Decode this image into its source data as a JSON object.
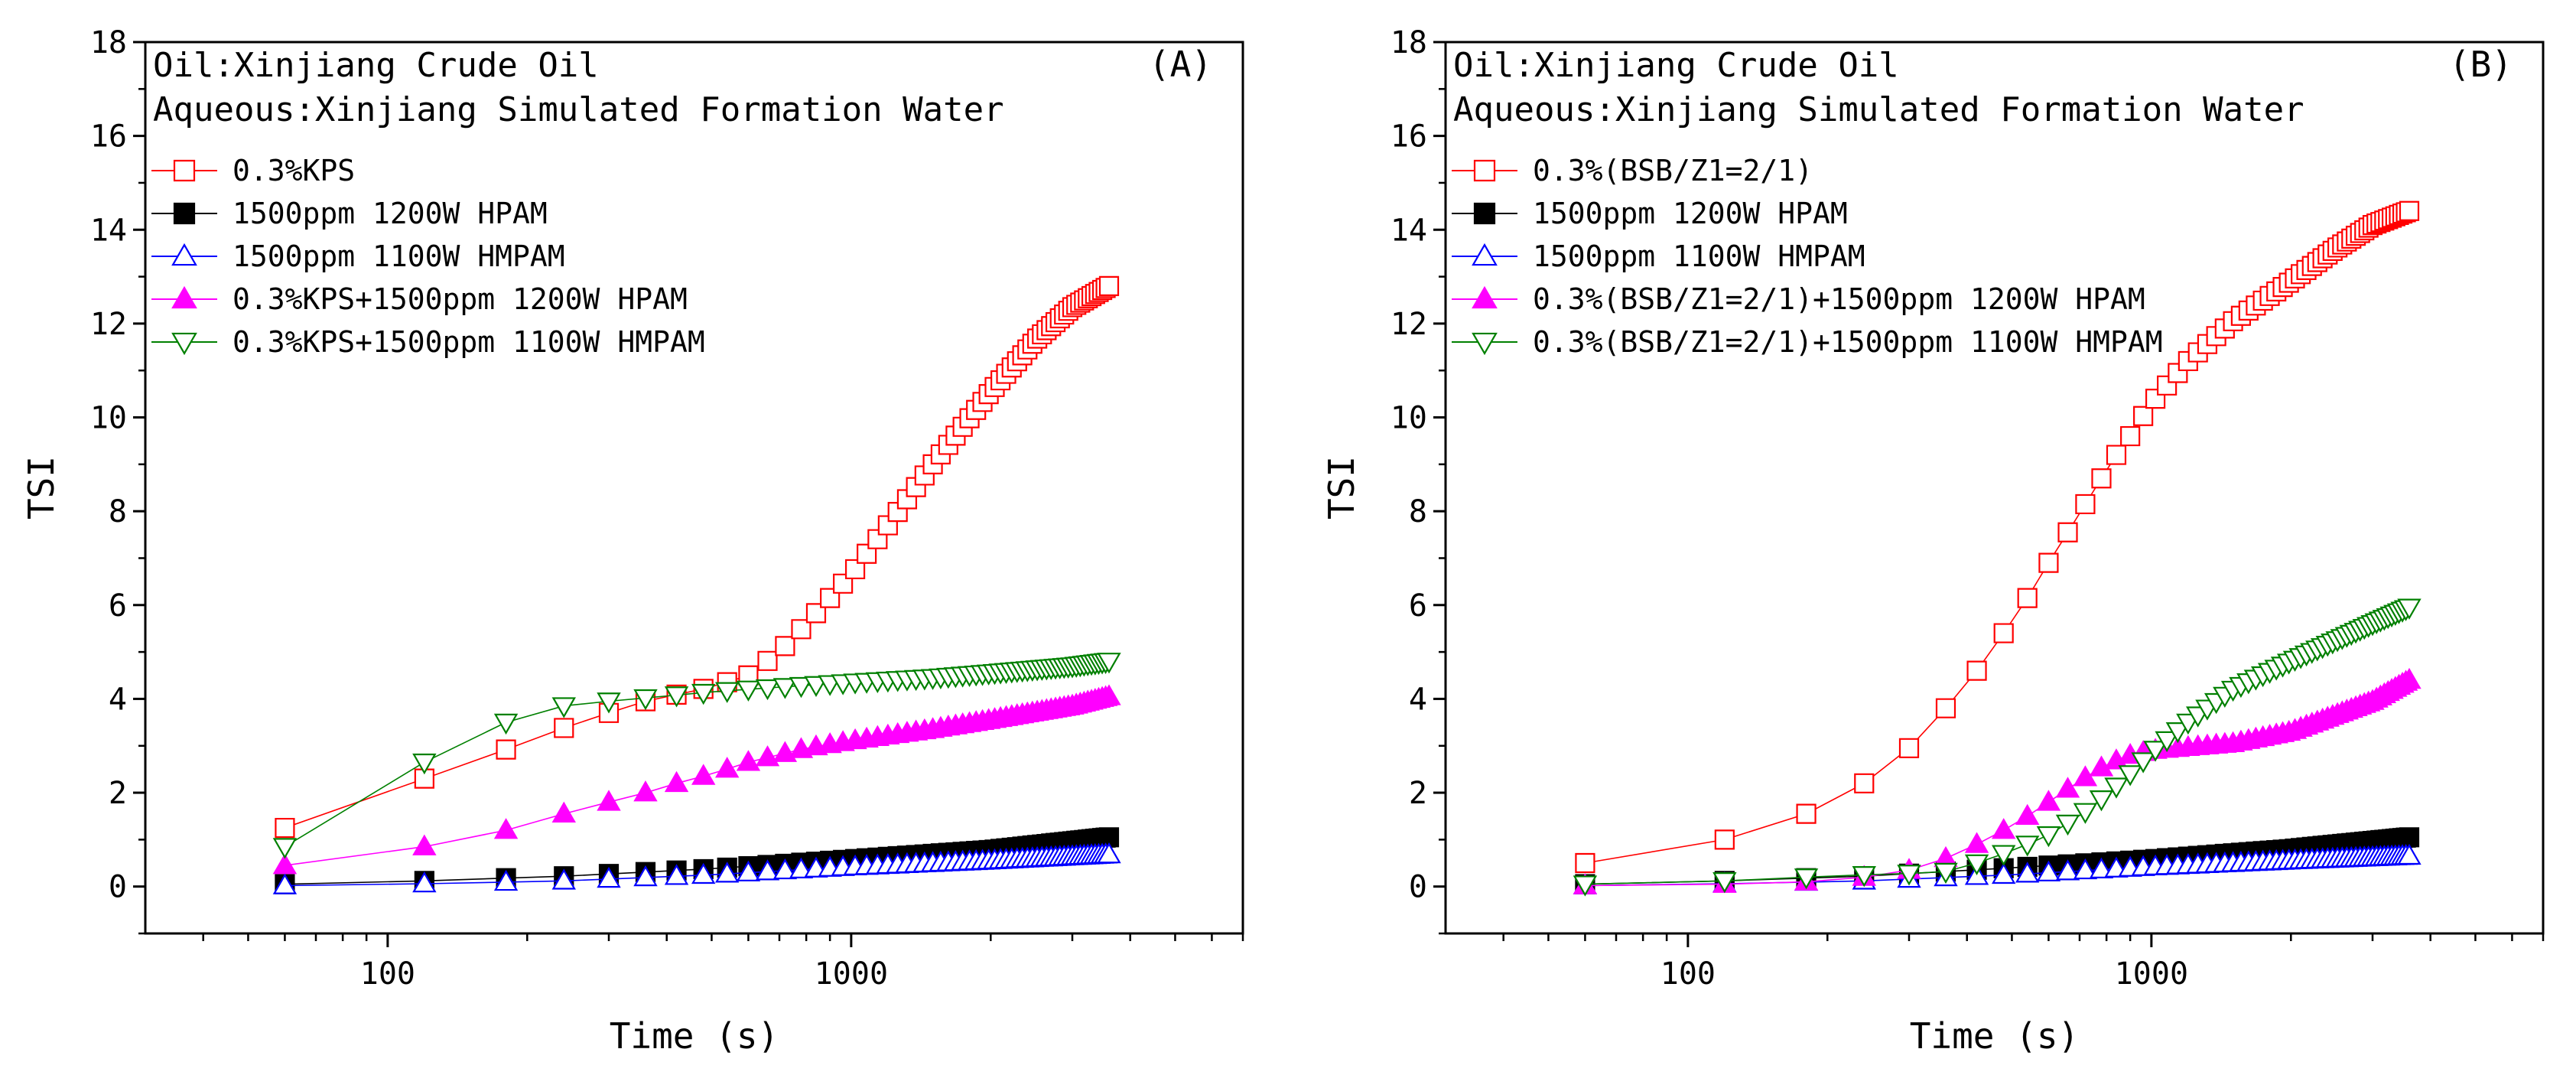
{
  "chart_data": [
    {
      "type": "scatter",
      "panel_label": "(A)",
      "annotation_lines": [
        "Oil:Xinjiang Crude Oil",
        "Aqueous:Xinjiang Simulated Formation Water"
      ],
      "xlabel": "Time (s)",
      "ylabel": "TSI",
      "xscale": "log",
      "xlim": [
        30,
        7000
      ],
      "ylim": [
        -1,
        18
      ],
      "xticks": [
        100,
        1000
      ],
      "xtick_labels": [
        "100",
        "1000"
      ],
      "yticks": [
        0,
        2,
        4,
        6,
        8,
        10,
        12,
        14,
        16,
        18
      ],
      "ytick_labels": [
        "0",
        "2",
        "4",
        "6",
        "8",
        "10",
        "12",
        "14",
        "16",
        "18"
      ],
      "legend_position": "top-left",
      "series": [
        {
          "name": "0.3%KPS",
          "color": "#ff0000",
          "marker": "square-open",
          "control_points": [
            [
              60,
              1.25
            ],
            [
              120,
              2.3
            ],
            [
              180,
              2.92
            ],
            [
              240,
              3.38
            ],
            [
              300,
              3.7
            ],
            [
              360,
              3.95
            ],
            [
              500,
              4.25
            ],
            [
              600,
              4.5
            ],
            [
              700,
              5.0
            ],
            [
              800,
              5.6
            ],
            [
              900,
              6.15
            ],
            [
              1000,
              6.65
            ],
            [
              1200,
              7.7
            ],
            [
              1500,
              9.0
            ],
            [
              2000,
              10.55
            ],
            [
              2500,
              11.65
            ],
            [
              3000,
              12.35
            ],
            [
              3600,
              12.8
            ]
          ]
        },
        {
          "name": "1500ppm 1200W HPAM",
          "color": "#000000",
          "marker": "square-filled",
          "control_points": [
            [
              60,
              0.05
            ],
            [
              120,
              0.12
            ],
            [
              240,
              0.22
            ],
            [
              500,
              0.38
            ],
            [
              1000,
              0.58
            ],
            [
              2000,
              0.78
            ],
            [
              3600,
              1.05
            ]
          ]
        },
        {
          "name": "1500ppm 1100W HMPAM",
          "color": "#0000ff",
          "marker": "triangle-up-open",
          "control_points": [
            [
              60,
              0.02
            ],
            [
              120,
              0.06
            ],
            [
              240,
              0.12
            ],
            [
              500,
              0.25
            ],
            [
              1000,
              0.42
            ],
            [
              2000,
              0.55
            ],
            [
              3600,
              0.68
            ]
          ]
        },
        {
          "name": "0.3%KPS+1500ppm 1200W HPAM",
          "color": "#ff00ff",
          "marker": "triangle-up-filled",
          "control_points": [
            [
              60,
              0.45
            ],
            [
              120,
              0.85
            ],
            [
              180,
              1.2
            ],
            [
              240,
              1.55
            ],
            [
              300,
              1.8
            ],
            [
              360,
              2.0
            ],
            [
              420,
              2.2
            ],
            [
              500,
              2.4
            ],
            [
              600,
              2.65
            ],
            [
              800,
              2.95
            ],
            [
              1000,
              3.1
            ],
            [
              1500,
              3.35
            ],
            [
              2000,
              3.55
            ],
            [
              3000,
              3.85
            ],
            [
              3600,
              4.05
            ]
          ]
        },
        {
          "name": "0.3%KPS+1500ppm 1100W HMPAM",
          "color": "#008000",
          "marker": "triangle-down-open",
          "control_points": [
            [
              60,
              0.85
            ],
            [
              120,
              2.65
            ],
            [
              180,
              3.5
            ],
            [
              240,
              3.85
            ],
            [
              300,
              3.95
            ],
            [
              360,
              4.02
            ],
            [
              500,
              4.15
            ],
            [
              700,
              4.25
            ],
            [
              1000,
              4.35
            ],
            [
              1500,
              4.45
            ],
            [
              2000,
              4.55
            ],
            [
              3000,
              4.7
            ],
            [
              3600,
              4.8
            ]
          ]
        }
      ]
    },
    {
      "type": "scatter",
      "panel_label": "(B)",
      "annotation_lines": [
        "Oil:Xinjiang Crude Oil",
        "Aqueous:Xinjiang Simulated Formation Water"
      ],
      "xlabel": "Time (s)",
      "ylabel": "TSI",
      "xscale": "log",
      "xlim": [
        30,
        7000
      ],
      "ylim": [
        -1,
        18
      ],
      "xticks": [
        100,
        1000
      ],
      "xtick_labels": [
        "100",
        "1000"
      ],
      "yticks": [
        0,
        2,
        4,
        6,
        8,
        10,
        12,
        14,
        16,
        18
      ],
      "ytick_labels": [
        "0",
        "2",
        "4",
        "6",
        "8",
        "10",
        "12",
        "14",
        "16",
        "18"
      ],
      "legend_position": "top-left",
      "series": [
        {
          "name": "0.3%(BSB/Z1=2/1)",
          "color": "#ff0000",
          "marker": "square-open",
          "control_points": [
            [
              60,
              0.5
            ],
            [
              120,
              1.0
            ],
            [
              180,
              1.55
            ],
            [
              240,
              2.2
            ],
            [
              300,
              2.95
            ],
            [
              360,
              3.8
            ],
            [
              420,
              4.6
            ],
            [
              480,
              5.4
            ],
            [
              540,
              6.15
            ],
            [
              600,
              6.9
            ],
            [
              660,
              7.55
            ],
            [
              720,
              8.15
            ],
            [
              780,
              8.7
            ],
            [
              840,
              9.2
            ],
            [
              900,
              9.6
            ],
            [
              1000,
              10.3
            ],
            [
              1200,
              11.2
            ],
            [
              1500,
              12.05
            ],
            [
              2000,
              12.9
            ],
            [
              2500,
              13.6
            ],
            [
              3000,
              14.1
            ],
            [
              3600,
              14.4
            ]
          ]
        },
        {
          "name": "1500ppm 1200W HPAM",
          "color": "#000000",
          "marker": "square-filled",
          "control_points": [
            [
              60,
              0.05
            ],
            [
              120,
              0.12
            ],
            [
              240,
              0.22
            ],
            [
              500,
              0.4
            ],
            [
              1000,
              0.58
            ],
            [
              2000,
              0.8
            ],
            [
              3600,
              1.05
            ]
          ]
        },
        {
          "name": "1500ppm 1100W HMPAM",
          "color": "#0000ff",
          "marker": "triangle-up-open",
          "control_points": [
            [
              60,
              0.02
            ],
            [
              120,
              0.06
            ],
            [
              240,
              0.12
            ],
            [
              500,
              0.25
            ],
            [
              1000,
              0.42
            ],
            [
              2000,
              0.55
            ],
            [
              3600,
              0.65
            ]
          ]
        },
        {
          "name": "0.3%(BSB/Z1=2/1)+1500ppm 1200W HPAM",
          "color": "#ff00ff",
          "marker": "triangle-up-filled",
          "control_points": [
            [
              60,
              0.02
            ],
            [
              120,
              0.05
            ],
            [
              180,
              0.1
            ],
            [
              240,
              0.2
            ],
            [
              300,
              0.35
            ],
            [
              360,
              0.6
            ],
            [
              420,
              0.9
            ],
            [
              480,
              1.2
            ],
            [
              540,
              1.5
            ],
            [
              600,
              1.8
            ],
            [
              700,
              2.25
            ],
            [
              800,
              2.6
            ],
            [
              900,
              2.8
            ],
            [
              1000,
              2.9
            ],
            [
              1500,
              3.05
            ],
            [
              2000,
              3.3
            ],
            [
              3000,
              3.95
            ],
            [
              3600,
              4.4
            ]
          ]
        },
        {
          "name": "0.3%(BSB/Z1=2/1)+1500ppm 1100W HMPAM",
          "color": "#008000",
          "marker": "triangle-down-open",
          "control_points": [
            [
              60,
              0.05
            ],
            [
              120,
              0.12
            ],
            [
              180,
              0.2
            ],
            [
              240,
              0.25
            ],
            [
              300,
              0.28
            ],
            [
              360,
              0.32
            ],
            [
              420,
              0.5
            ],
            [
              480,
              0.7
            ],
            [
              540,
              0.9
            ],
            [
              600,
              1.1
            ],
            [
              700,
              1.5
            ],
            [
              800,
              1.95
            ],
            [
              900,
              2.4
            ],
            [
              1000,
              2.85
            ],
            [
              1200,
              3.5
            ],
            [
              1500,
              4.2
            ],
            [
              2000,
              4.8
            ],
            [
              3000,
              5.6
            ],
            [
              3600,
              5.95
            ]
          ]
        }
      ]
    }
  ]
}
